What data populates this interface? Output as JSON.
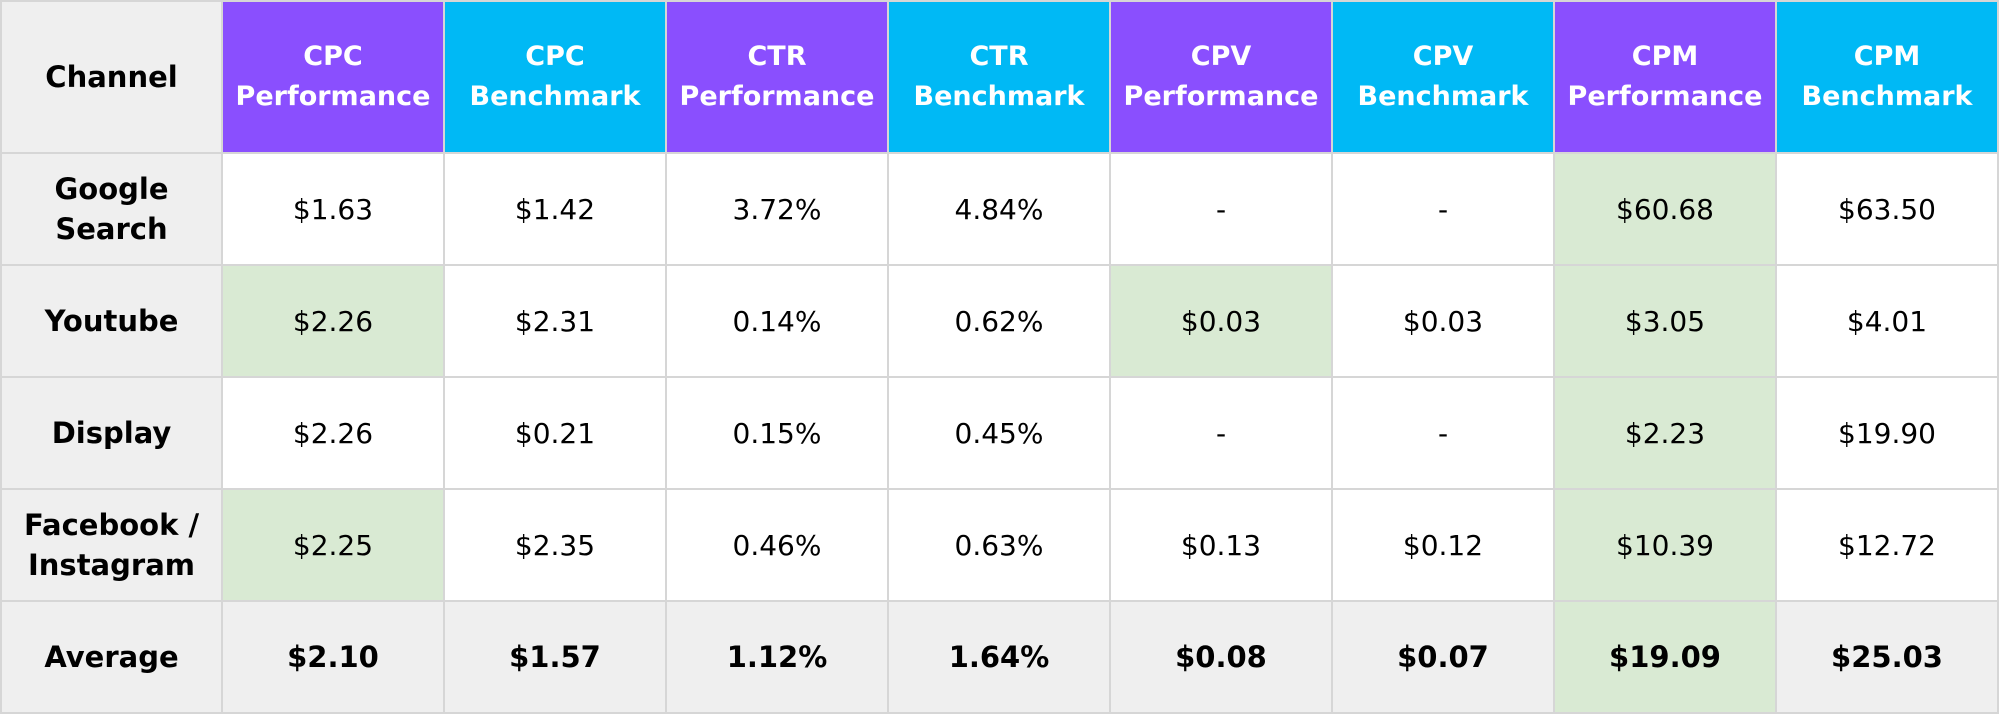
{
  "chart_data": {
    "type": "table",
    "colors": {
      "performance_header": "#8a4ffe",
      "benchmark_header": "#00b9f5",
      "label_background": "#efefef",
      "highlight": "#d9ead3",
      "grid": "#d6d6d6"
    },
    "header": {
      "channel": "Channel",
      "columns": [
        {
          "line1": "CPC",
          "line2": "Performance"
        },
        {
          "line1": "CPC",
          "line2": "Benchmark"
        },
        {
          "line1": "CTR",
          "line2": "Performance"
        },
        {
          "line1": "CTR",
          "line2": "Benchmark"
        },
        {
          "line1": "CPV",
          "line2": "Performance"
        },
        {
          "line1": "CPV",
          "line2": "Benchmark"
        },
        {
          "line1": "CPM",
          "line2": "Performance"
        },
        {
          "line1": "CPM",
          "line2": "Benchmark"
        }
      ]
    },
    "rows": [
      {
        "label_line1": "Google",
        "label_line2": "Search",
        "values": [
          "$1.63",
          "$1.42",
          "3.72%",
          "4.84%",
          "-",
          "-",
          "$60.68",
          "$63.50"
        ]
      },
      {
        "label_line1": "Youtube",
        "label_line2": "",
        "values": [
          "$2.26",
          "$2.31",
          "0.14%",
          "0.62%",
          "$0.03",
          "$0.03",
          "$3.05",
          "$4.01"
        ]
      },
      {
        "label_line1": "Display",
        "label_line2": "",
        "values": [
          "$2.26",
          "$0.21",
          "0.15%",
          "0.45%",
          "-",
          "-",
          "$2.23",
          "$19.90"
        ]
      },
      {
        "label_line1": "Facebook /",
        "label_line2": "Instagram",
        "values": [
          "$2.25",
          "$2.35",
          "0.46%",
          "0.63%",
          "$0.13",
          "$0.12",
          "$10.39",
          "$12.72"
        ]
      }
    ],
    "average": {
      "label": "Average",
      "values": [
        "$2.10",
        "$1.57",
        "1.12%",
        "1.64%",
        "$0.08",
        "$0.07",
        "$19.09",
        "$25.03"
      ]
    }
  }
}
